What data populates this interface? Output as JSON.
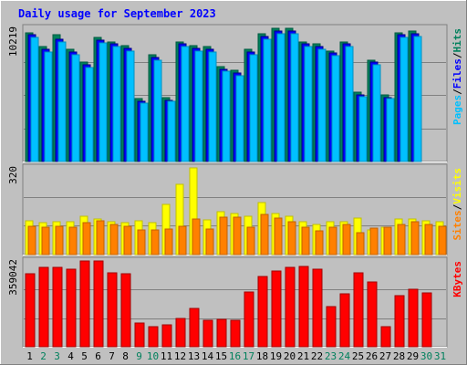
{
  "chart_data": {
    "type": "bar",
    "title": "Daily usage for September 2023",
    "colors": {
      "frame_bg": "#c0c0c0",
      "page_bg": "#ffffff",
      "hits": "#00805c",
      "files": "#0000ff",
      "pages": "#00c0ff",
      "visits": "#ffff00",
      "sites": "#ff8000",
      "kbytes": "#ff0000",
      "title": "#0000ff",
      "weekday_label": "#000000",
      "weekend_label": "#00805c"
    },
    "days": [
      "1",
      "2",
      "3",
      "4",
      "5",
      "6",
      "7",
      "8",
      "9",
      "10",
      "11",
      "12",
      "13",
      "14",
      "15",
      "16",
      "17",
      "18",
      "19",
      "20",
      "21",
      "22",
      "23",
      "24",
      "25",
      "26",
      "27",
      "28",
      "29",
      "30",
      "31"
    ],
    "weekend_days": [
      "2",
      "3",
      "9",
      "10",
      "16",
      "17",
      "23",
      "24",
      "30",
      "31"
    ],
    "panels": [
      {
        "id": "hits-files-pages",
        "y_max_label": "10219",
        "ymax": 10219,
        "legend": [
          {
            "label": "Pages",
            "color": "#00c0ff"
          },
          {
            "label": "/",
            "color": "#000000"
          },
          {
            "label": "Files",
            "color": "#0000ff"
          },
          {
            "label": "/",
            "color": "#000000"
          },
          {
            "label": "Hits",
            "color": "#00805c"
          }
        ],
        "series": [
          {
            "name": "Hits",
            "color": "#00805c",
            "values": [
              9900,
              8800,
              9700,
              8600,
              7600,
              9500,
              9200,
              8900,
              4800,
              8200,
              4900,
              9200,
              8900,
              8800,
              7300,
              7000,
              8600,
              9800,
              10219,
              10219,
              9200,
              9000,
              8500,
              9200,
              5300,
              7800,
              5100,
              9900,
              10000,
              null,
              null
            ]
          },
          {
            "name": "Files",
            "color": "#0000ff",
            "values": [
              9700,
              8600,
              9400,
              8400,
              7400,
              9300,
              9000,
              8700,
              4600,
              8000,
              4700,
              9000,
              8700,
              8600,
              7100,
              6800,
              8400,
              9600,
              10000,
              10000,
              9000,
              8800,
              8300,
              9000,
              5100,
              7600,
              4900,
              9700,
              9800,
              null,
              null
            ]
          },
          {
            "name": "Pages",
            "color": "#00c0ff",
            "values": [
              9500,
              8400,
              9200,
              8200,
              7200,
              9100,
              8800,
              8500,
              4500,
              7800,
              4600,
              8800,
              8500,
              8400,
              6900,
              6600,
              8200,
              9400,
              9800,
              9800,
              8800,
              8600,
              8100,
              8800,
              5000,
              7400,
              4800,
              9500,
              9600,
              null,
              null
            ]
          }
        ]
      },
      {
        "id": "visits-sites",
        "y_max_label": "320",
        "ymax": 320,
        "legend": [
          {
            "label": "Sites",
            "color": "#ff8000"
          },
          {
            "label": "/",
            "color": "#000000"
          },
          {
            "label": "Visits",
            "color": "#ffff00"
          }
        ],
        "series": [
          {
            "name": "Visits",
            "color": "#ffff00",
            "values": [
              125,
              118,
              122,
              120,
              140,
              132,
              120,
              118,
              125,
              118,
              185,
              258,
              320,
              128,
              158,
              150,
              140,
              192,
              150,
              142,
              120,
              110,
              122,
              122,
              135,
              92,
              102,
              130,
              132,
              125,
              122
            ]
          },
          {
            "name": "Sites",
            "color": "#ff8000",
            "values": [
              105,
              100,
              104,
              102,
              118,
              124,
              110,
              104,
              90,
              92,
              95,
              103,
              132,
              95,
              138,
              138,
              102,
              148,
              135,
              120,
              102,
              88,
              102,
              110,
              82,
              96,
              100,
              112,
              120,
              110,
              105
            ]
          }
        ]
      },
      {
        "id": "kbytes",
        "y_max_label": "359042",
        "ymax": 359042,
        "legend": [
          {
            "label": "KBytes",
            "color": "#ff0000"
          }
        ],
        "series": [
          {
            "name": "KBytes",
            "color": "#ff0000",
            "values": [
              305000,
              332000,
              332000,
              323000,
              359042,
              359042,
              310000,
              305000,
              100000,
              85000,
              90000,
              118000,
              160000,
              110000,
              115000,
              110000,
              230000,
              295000,
              318000,
              332000,
              338000,
              325000,
              168000,
              220000,
              310000,
              270000,
              85000,
              215000,
              240000,
              225000,
              null
            ]
          }
        ]
      }
    ]
  }
}
